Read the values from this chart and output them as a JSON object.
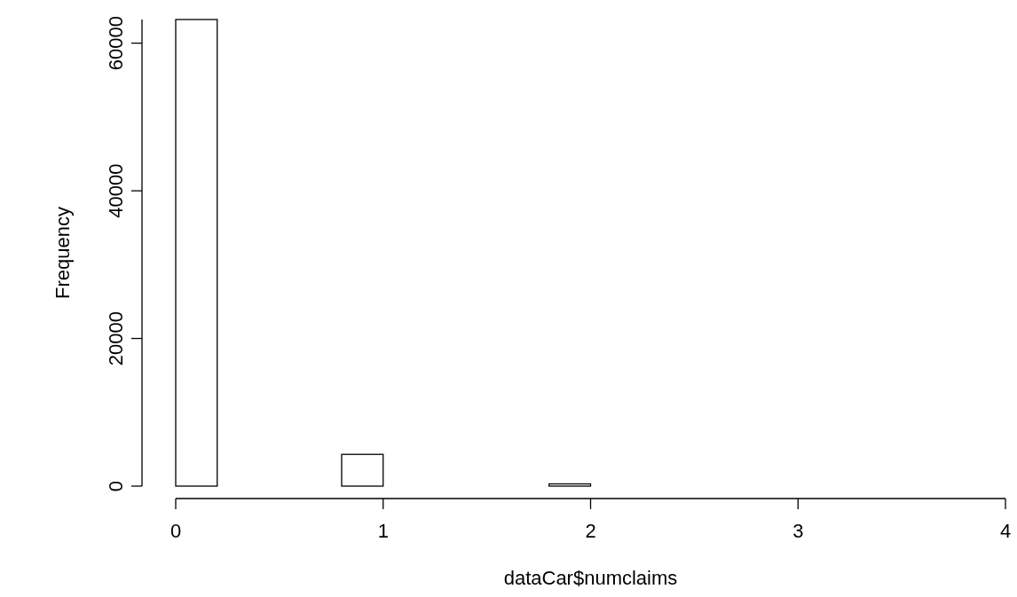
{
  "chart_data": {
    "type": "histogram",
    "xlabel": "dataCar$numclaims",
    "ylabel": "Frequency",
    "bins": [
      0,
      0.2,
      0.4,
      0.6,
      0.8,
      1,
      1.2,
      1.4,
      1.6,
      1.8,
      2,
      2.2,
      2.4,
      2.6,
      2.8,
      3,
      3.2,
      3.4,
      3.6,
      3.8,
      4
    ],
    "values": [
      63200,
      0,
      0,
      0,
      4300,
      0,
      0,
      0,
      0,
      300,
      0,
      0,
      0,
      0,
      0,
      0,
      0,
      0,
      0,
      0
    ],
    "color": "#ffffff",
    "xlim": [
      0,
      4
    ],
    "xticks": [
      0,
      1,
      2,
      3,
      4
    ],
    "ylim": [
      0,
      63200
    ],
    "yticks": [
      0,
      20000,
      40000,
      60000
    ],
    "grid": false
  }
}
